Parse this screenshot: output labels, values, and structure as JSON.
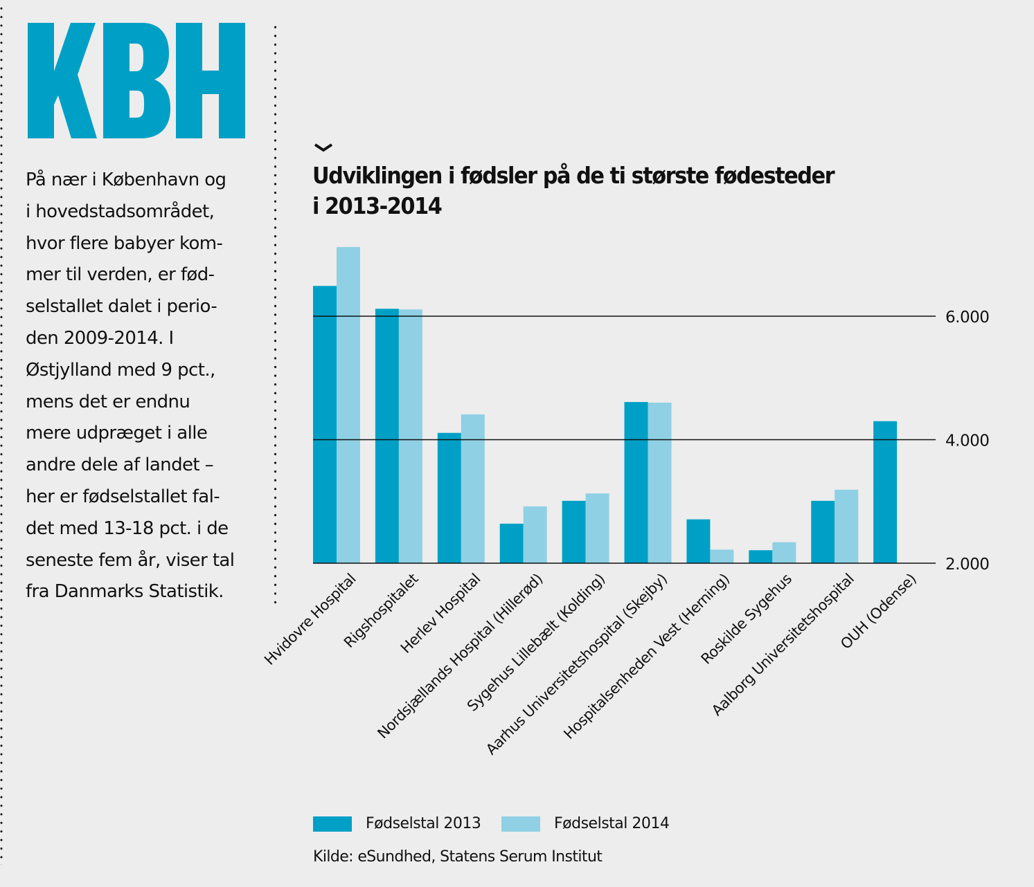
{
  "logo": {
    "text": "KBH",
    "color": "#00A0C6"
  },
  "body_text": [
    "På nær i København og",
    "i hovedstadsområdet,",
    "hvor flere babyer kom-",
    "mer til verden, er fød-",
    "selstallet dalet i perio-",
    "den 2009-2014. I",
    "Østjylland med 9 pct.,",
    "mens det er endnu",
    "mere udpræget i alle",
    "andre dele af landet –",
    "her er fødselstallet fal-",
    "det med 13-18 pct. i de",
    "seneste fem år, viser tal",
    "fra Danmarks Statistik."
  ],
  "chevron_icon": "chevron-down-icon",
  "source": "Kilde: eSundhed, Statens Serum Institut",
  "chart_data": {
    "type": "bar",
    "title": "Udviklingen i fødsler på de ti største fødesteder i 2013-2014",
    "title_lines": [
      "Udviklingen i fødsler på de ti største fødesteder",
      "i 2013-2014"
    ],
    "xlabel": "",
    "ylabel": "",
    "ylim": [
      2000,
      7200
    ],
    "yticks": [
      2000,
      4000,
      6000
    ],
    "ytick_labels": [
      "2.000",
      "4.000",
      "6.000"
    ],
    "y_axis_position": "right",
    "grid": true,
    "legend_position": "bottom-left",
    "categories": [
      "Hvidovre Hospital",
      "Rigshospitalet",
      "Herlev Hospital",
      "Nordsjællands Hospital (Hillerød)",
      "Sygehus Lillebælt (Kolding)",
      "Aarhus Universitetshospital (Skejby)",
      "Hospitalsenheden Vest (Herning)",
      "Roskilde Sygehus",
      "Aalborg Universitetshospital",
      "OUH (Odense)"
    ],
    "series": [
      {
        "name": "Fødselstal 2013",
        "color": "#00A0C6",
        "values": [
          6490,
          6120,
          4110,
          2640,
          3010,
          4610,
          2710,
          2210,
          3010,
          4300
        ]
      },
      {
        "name": "Fødselstal 2014",
        "color": "#8FD0E4",
        "values": [
          7120,
          6110,
          4410,
          2920,
          3130,
          4600,
          2220,
          2340,
          3190,
          null
        ]
      }
    ]
  }
}
